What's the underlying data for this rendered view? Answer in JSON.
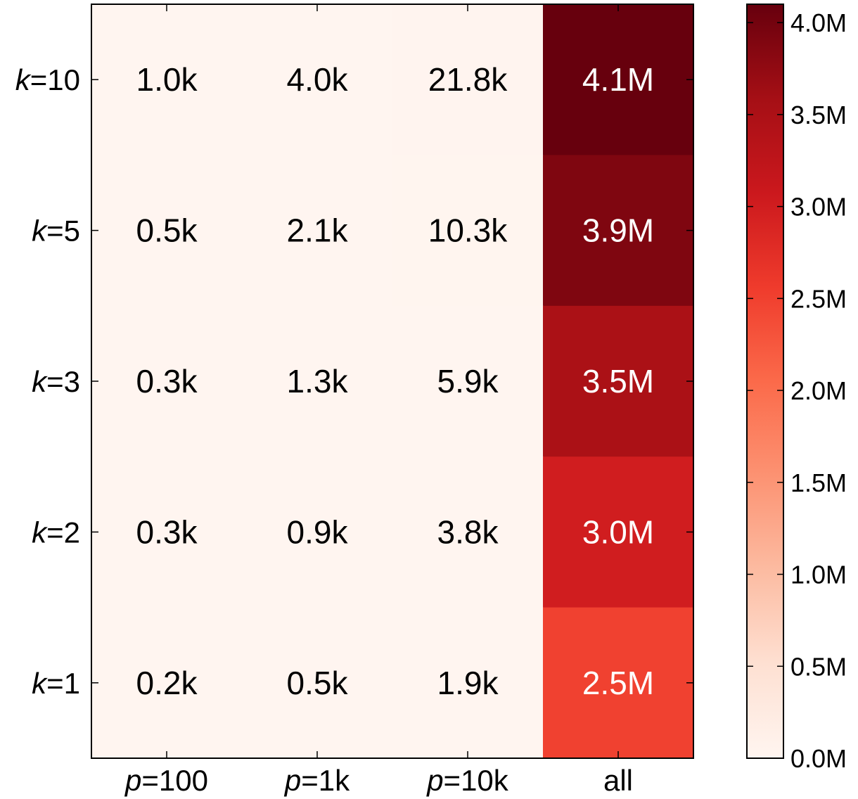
{
  "chart_data": {
    "type": "heatmap",
    "title": "",
    "xlabel": "",
    "ylabel": "",
    "x_categories": [
      {
        "prefix": "p",
        "rest": "=100"
      },
      {
        "prefix": "p",
        "rest": "=1k"
      },
      {
        "prefix": "p",
        "rest": "=10k"
      },
      {
        "prefix": "",
        "rest": "all"
      }
    ],
    "y_categories": [
      {
        "prefix": "k",
        "rest": "=10"
      },
      {
        "prefix": "k",
        "rest": "=5"
      },
      {
        "prefix": "k",
        "rest": "=3"
      },
      {
        "prefix": "k",
        "rest": "=2"
      },
      {
        "prefix": "k",
        "rest": "=1"
      }
    ],
    "values": [
      [
        1000,
        4000,
        21800,
        4100000
      ],
      [
        500,
        2100,
        10300,
        3900000
      ],
      [
        300,
        1300,
        5900,
        3500000
      ],
      [
        300,
        900,
        3800,
        3000000
      ],
      [
        200,
        500,
        1900,
        2500000
      ]
    ],
    "cell_labels": [
      [
        "1.0k",
        "4.0k",
        "21.8k",
        "4.1M"
      ],
      [
        "0.5k",
        "2.1k",
        "10.3k",
        "3.9M"
      ],
      [
        "0.3k",
        "1.3k",
        "5.9k",
        "3.5M"
      ],
      [
        "0.3k",
        "0.9k",
        "3.8k",
        "3.0M"
      ],
      [
        "0.2k",
        "0.5k",
        "1.9k",
        "2.5M"
      ]
    ],
    "colormap": "Reds",
    "vmin": 0,
    "vmax": 4100000,
    "colorbar": {
      "ticks": [
        0,
        500000,
        1000000,
        1500000,
        2000000,
        2500000,
        3000000,
        3500000,
        4000000
      ],
      "tick_labels": [
        "0.0M",
        "0.5M",
        "1.0M",
        "1.5M",
        "2.0M",
        "2.5M",
        "3.0M",
        "3.5M",
        "4.0M"
      ]
    },
    "colormap_stops": [
      "#fff5f0",
      "#fee0d2",
      "#fcbba1",
      "#fc9272",
      "#fb6a4a",
      "#ef3b2c",
      "#cb181d",
      "#a50f15",
      "#67000d"
    ],
    "text_colors": {
      "light": "#ffffff",
      "dark": "#000000"
    }
  }
}
